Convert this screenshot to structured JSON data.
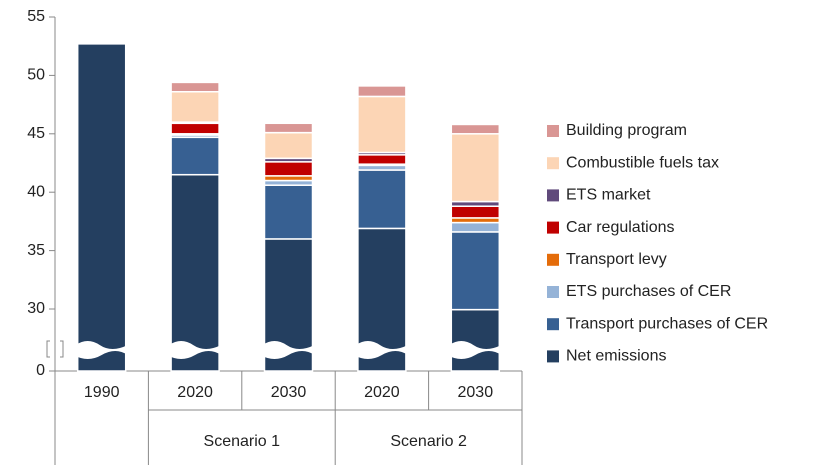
{
  "chart_data": {
    "type": "stacked-bar",
    "categories": [
      "1990",
      "2020",
      "2030",
      "2020",
      "2030"
    ],
    "category_groups": [
      null,
      "Scenario 1",
      "Scenario 1",
      "Scenario 2",
      "Scenario 2"
    ],
    "series": [
      {
        "name": "Net emissions",
        "color": "#243f60",
        "values": [
          52.7,
          41.5,
          36.0,
          36.9,
          29.7
        ]
      },
      {
        "name": "Transport purchases of CER",
        "color": "#376092",
        "values": [
          null,
          3.2,
          4.6,
          5.0,
          6.9
        ]
      },
      {
        "name": "ETS purchases of CER",
        "color": "#95b3d7",
        "values": [
          null,
          0.2,
          0.4,
          0.4,
          0.8
        ]
      },
      {
        "name": "Transport levy",
        "color": "#e46c0a",
        "values": [
          null,
          0.1,
          0.4,
          0.1,
          0.4
        ]
      },
      {
        "name": "Car regulations",
        "color": "#c00000",
        "values": [
          null,
          0.9,
          1.2,
          0.8,
          1.0
        ]
      },
      {
        "name": "ETS market",
        "color": "#604a7b",
        "values": [
          null,
          0.1,
          0.3,
          0.2,
          0.4
        ]
      },
      {
        "name": "Combustible fuels tax",
        "color": "#fcd5b5",
        "values": [
          null,
          2.6,
          2.2,
          4.8,
          5.8
        ]
      },
      {
        "name": "Building program",
        "color": "#d99694",
        "values": [
          null,
          0.8,
          0.8,
          0.9,
          0.8
        ]
      }
    ],
    "ylim": [
      0,
      55
    ],
    "yticks": [
      0,
      30,
      35,
      40,
      45,
      50,
      55
    ],
    "grid": false
  }
}
